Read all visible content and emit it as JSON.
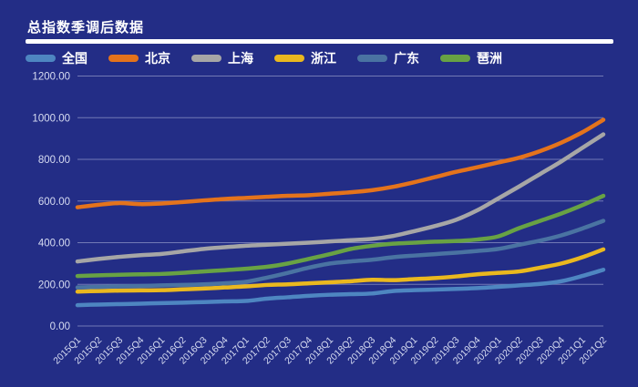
{
  "title": "总指数季调后数据",
  "chart_data": {
    "type": "line",
    "title": "总指数季调后数据",
    "xlabel": "",
    "ylabel": "",
    "ylim": [
      0,
      1200
    ],
    "ytick_step": 200,
    "ytick_labels": [
      "0.00",
      "200.00",
      "400.00",
      "600.00",
      "800.00",
      "1000.00",
      "1200.00"
    ],
    "grid": true,
    "legend_position": "top",
    "categories": [
      "2015Q1",
      "2015Q2",
      "2015Q3",
      "2015Q4",
      "2016Q1",
      "2016Q2",
      "2016Q3",
      "2016Q4",
      "2017Q1",
      "2017Q2",
      "2017Q3",
      "2017Q4",
      "2018Q1",
      "2018Q2",
      "2018Q3",
      "2018Q4",
      "2019Q1",
      "2019Q2",
      "2019Q3",
      "2019Q4",
      "2020Q1",
      "2020Q2",
      "2020Q3",
      "2020Q4",
      "2021Q1",
      "2021Q2"
    ],
    "series": [
      {
        "name": "全国",
        "color": "#4e86c1",
        "values": [
          100,
          103,
          105,
          107,
          110,
          112,
          115,
          118,
          120,
          131,
          138,
          145,
          150,
          153,
          156,
          168,
          172,
          175,
          178,
          182,
          188,
          195,
          202,
          215,
          240,
          270
        ]
      },
      {
        "name": "北京",
        "color": "#e4731c",
        "values": [
          570,
          582,
          590,
          585,
          588,
          595,
          603,
          610,
          615,
          620,
          625,
          628,
          635,
          642,
          652,
          668,
          690,
          715,
          740,
          762,
          785,
          808,
          840,
          880,
          930,
          990
        ]
      },
      {
        "name": "上海",
        "color": "#a6a6a6",
        "values": [
          310,
          322,
          332,
          340,
          346,
          358,
          370,
          378,
          385,
          390,
          395,
          400,
          406,
          412,
          418,
          432,
          455,
          480,
          510,
          555,
          612,
          670,
          730,
          790,
          855,
          920
        ]
      },
      {
        "name": "浙江",
        "color": "#eab81f",
        "values": [
          165,
          168,
          170,
          171,
          172,
          176,
          180,
          185,
          190,
          197,
          200,
          205,
          210,
          215,
          222,
          220,
          225,
          230,
          238,
          248,
          255,
          262,
          280,
          300,
          330,
          368
        ]
      },
      {
        "name": "广东",
        "color": "#4a73a2",
        "values": [
          185,
          188,
          190,
          192,
          195,
          197,
          200,
          205,
          212,
          232,
          255,
          280,
          300,
          310,
          318,
          330,
          338,
          345,
          352,
          360,
          370,
          390,
          410,
          435,
          468,
          505
        ]
      },
      {
        "name": "琶洲",
        "color": "#68a244",
        "values": [
          240,
          243,
          246,
          248,
          250,
          255,
          262,
          268,
          275,
          284,
          300,
          322,
          345,
          370,
          385,
          395,
          400,
          405,
          408,
          415,
          430,
          470,
          505,
          540,
          580,
          625
        ]
      }
    ],
    "colors": {
      "background": "#232d86",
      "gridline": "rgba(223,227,248,0.42)",
      "axis_text": "#d7dcf2",
      "title_text": "#ffffff"
    }
  }
}
